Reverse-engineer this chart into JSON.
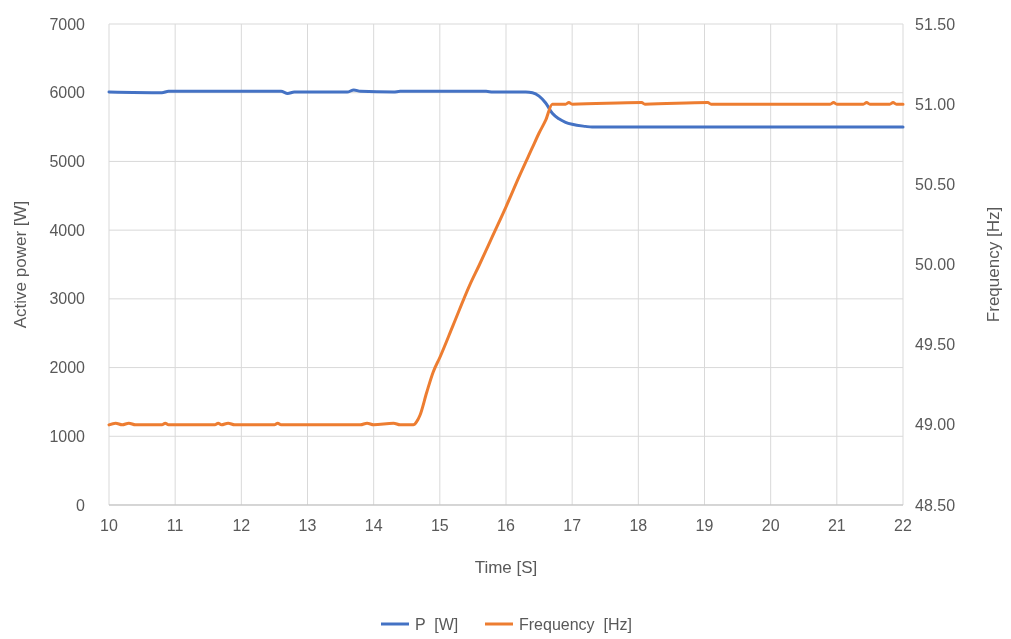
{
  "chart_data": {
    "type": "line",
    "xlabel": "Time [S]",
    "ylabel": "Active power [W]",
    "y2label": "Frequency [Hz]",
    "xlim": [
      10,
      22
    ],
    "xticks": [
      10,
      11,
      12,
      13,
      14,
      15,
      16,
      17,
      18,
      19,
      20,
      21,
      22
    ],
    "ylim": [
      0,
      7000
    ],
    "yticks": [
      0,
      1000,
      2000,
      3000,
      4000,
      5000,
      6000,
      7000
    ],
    "y2lim": [
      48.5,
      51.5
    ],
    "y2ticks": [
      {
        "value": 48.5,
        "label": "48.50"
      },
      {
        "value": 49,
        "label": "49.00"
      },
      {
        "value": 49.5,
        "label": "49.50"
      },
      {
        "value": 50,
        "label": "50.00"
      },
      {
        "value": 50.5,
        "label": "50.50"
      },
      {
        "value": 51,
        "label": "51.00"
      },
      {
        "value": 51.5,
        "label": "51.50"
      }
    ],
    "grid": true,
    "legend": "bottom",
    "series": [
      {
        "name": "P  [W]",
        "color": "#4472c4",
        "x": [
          10,
          10.8,
          10.9,
          12.6,
          12.7,
          12.8,
          13.6,
          13.7,
          13.8,
          14.3,
          14.4,
          14.5,
          15.7,
          15.8,
          16.3,
          16.4,
          16.5,
          16.6,
          16.7,
          16.8,
          16.9,
          17.0,
          17.2,
          17.3,
          22
        ],
        "values": [
          6010,
          6000,
          6020,
          6020,
          5990,
          6010,
          6010,
          6040,
          6020,
          6010,
          6020,
          6020,
          6020,
          6010,
          6010,
          6000,
          5950,
          5850,
          5700,
          5620,
          5570,
          5540,
          5510,
          5500,
          5500
        ]
      },
      {
        "name": "Frequency  [Hz]",
        "color": "#ed7d31",
        "axis": "y2",
        "x": [
          10,
          10.1,
          10.2,
          10.3,
          10.4,
          10.8,
          10.85,
          10.9,
          11.6,
          11.65,
          11.7,
          11.8,
          11.9,
          12.5,
          12.55,
          12.6,
          13.8,
          13.9,
          14.0,
          14.3,
          14.4,
          14.6,
          14.65,
          14.7,
          14.8,
          14.9,
          15.0,
          15.2,
          15.45,
          15.6,
          15.8,
          16.0,
          16.2,
          16.4,
          16.5,
          16.6,
          16.7,
          16.8,
          16.9,
          16.95,
          17.0,
          18.05,
          18.1,
          19.05,
          19.1,
          20.9,
          20.95,
          21.0,
          21.4,
          21.45,
          21.5,
          21.8,
          21.85,
          21.9,
          22
        ],
        "values": [
          49.0,
          49.01,
          49.0,
          49.01,
          49.0,
          49.0,
          49.01,
          49.0,
          49.0,
          49.01,
          49.0,
          49.01,
          49.0,
          49.0,
          49.01,
          49.0,
          49.0,
          49.01,
          49.0,
          49.01,
          49.0,
          49.0,
          49.02,
          49.06,
          49.2,
          49.33,
          49.42,
          49.62,
          49.87,
          50.0,
          50.18,
          50.36,
          50.55,
          50.73,
          50.82,
          50.9,
          51.0,
          51.0,
          51.0,
          51.01,
          51.0,
          51.01,
          51.0,
          51.01,
          51.0,
          51.0,
          51.01,
          51.0,
          51.0,
          51.01,
          51.0,
          51.0,
          51.01,
          51.0,
          51.0
        ]
      }
    ]
  }
}
